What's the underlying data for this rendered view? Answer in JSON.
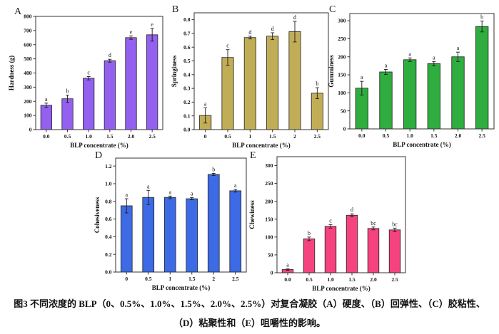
{
  "figure": {
    "caption_line1": "图3 不同浓度的 BLP（0、0.5%、1.0%、1.5%、2.0%、2.5%）对复合凝胶（A）硬度、（B）回弹性、（C）胶粘性、",
    "caption_line2": "（D）粘聚性和（E）咀嚼性的影响。",
    "colors": {
      "axis": "#333333",
      "bar_edge": "#222222",
      "error_bar": "#1a1a1a"
    }
  },
  "chart_data": [
    {
      "type": "bar",
      "panel": "A",
      "ylabel": "Hardness (g)",
      "xlabel": "BLP concentrate (%)",
      "categories": [
        "0.0",
        "0.5",
        "1.0",
        "1.5",
        "2.0",
        "2.5"
      ],
      "values": [
        172,
        218,
        363,
        487,
        650,
        670
      ],
      "errors": [
        15,
        25,
        12,
        10,
        12,
        45
      ],
      "sig_letters": [
        "a",
        "b",
        "c",
        "d",
        "e",
        "e"
      ],
      "ylim": [
        0,
        800
      ],
      "yticks": [
        "0",
        "100",
        "200",
        "300",
        "400",
        "500",
        "600",
        "700",
        "800"
      ],
      "bar_color": "#9460EF"
    },
    {
      "type": "bar",
      "panel": "B",
      "ylabel": "Springiness",
      "xlabel": "BLP concentrate (%)",
      "categories": [
        "0",
        "0.5",
        "1",
        "1.5",
        "2",
        "2.5"
      ],
      "values": [
        0.103,
        0.525,
        0.67,
        0.68,
        0.713,
        0.265
      ],
      "errors": [
        0.055,
        0.057,
        0.01,
        0.025,
        0.075,
        0.04
      ],
      "sig_letters": [
        "a",
        "c",
        "d",
        "d",
        "d",
        "b"
      ],
      "ylim": [
        0,
        0.85
      ],
      "yticks": [
        "0.0",
        "0.1",
        "0.2",
        "0.3",
        "0.4",
        "0.5",
        "0.6",
        "0.7",
        "0.8"
      ],
      "bar_color": "#C2AD57"
    },
    {
      "type": "bar",
      "panel": "C",
      "ylabel": "Gumminess",
      "xlabel": "BLP concentrate (%)",
      "categories": [
        "0.0",
        "0.5",
        "1.0",
        "1.5",
        "2.0",
        "2.5"
      ],
      "values": [
        113,
        158,
        192,
        181,
        200,
        284
      ],
      "errors": [
        19,
        7,
        5,
        6,
        13,
        15
      ],
      "sig_letters": [
        "a",
        "a",
        "a",
        "a",
        "a",
        "b"
      ],
      "ylim": [
        0,
        320
      ],
      "yticks": [
        "0",
        "50",
        "100",
        "150",
        "200",
        "250",
        "300"
      ],
      "bar_color": "#2FAD3F"
    },
    {
      "type": "bar",
      "panel": "D",
      "ylabel": "Cohesiveness",
      "xlabel": "BLP concentrate (%)",
      "categories": [
        "0",
        "0.5",
        "1",
        "1.5",
        "2",
        "2.5"
      ],
      "values": [
        0.75,
        0.845,
        0.845,
        0.83,
        1.105,
        0.92
      ],
      "errors": [
        0.08,
        0.08,
        0.015,
        0.012,
        0.012,
        0.015
      ],
      "sig_letters": [
        "a",
        "a",
        "a",
        "a",
        "b",
        "a"
      ],
      "ylim": [
        0,
        1.29
      ],
      "yticks": [
        "0.0",
        "0.2",
        "0.4",
        "0.6",
        "0.8",
        "1.0",
        "1.2"
      ],
      "bar_color": "#3D6BE5"
    },
    {
      "type": "bar",
      "panel": "E",
      "ylabel": "Chewiness",
      "xlabel": "BLP concentrate (%)",
      "categories": [
        "0.0",
        "0.5",
        "1.0",
        "1.5",
        "2.0",
        "2.5"
      ],
      "values": [
        9,
        95,
        130,
        161,
        124,
        120
      ],
      "errors": [
        2,
        5,
        5,
        4,
        4,
        5
      ],
      "sig_letters": [
        "a",
        "b",
        "c",
        "d",
        "bc",
        "bc"
      ],
      "ylim": [
        0,
        325
      ],
      "yticks": [
        "0",
        "50",
        "100",
        "150",
        "200",
        "250",
        "300"
      ],
      "bar_color": "#F4437F"
    }
  ]
}
